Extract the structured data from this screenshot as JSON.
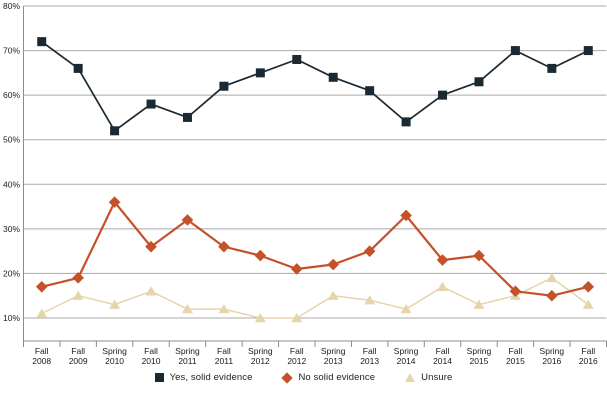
{
  "chart_data": {
    "type": "line",
    "title": "",
    "xlabel": "",
    "ylabel": "",
    "categories": [
      "Fall 2008",
      "Fall 2009",
      "Spring 2010",
      "Fall 2010",
      "Spring 2011",
      "Fall 2011",
      "Spring 2012",
      "Fall 2012",
      "Spring 2013",
      "Fall 2013",
      "Spring 2014",
      "Fall 2014",
      "Spring 2015",
      "Fall 2015",
      "Spring 2016",
      "Fall 2016"
    ],
    "series": [
      {
        "name": "Yes, solid evidence",
        "marker": "square",
        "color": "#1b2933",
        "line_width": 1.7,
        "values": [
          72,
          66,
          52,
          58,
          55,
          62,
          65,
          68,
          64,
          61,
          54,
          60,
          63,
          70,
          66,
          70
        ]
      },
      {
        "name": "No solid evidence",
        "marker": "diamond",
        "color": "#c5512b",
        "line_width": 2.2,
        "values": [
          17,
          19,
          36,
          26,
          32,
          26,
          24,
          21,
          22,
          25,
          33,
          23,
          24,
          16,
          15,
          17
        ]
      },
      {
        "name": "Unsure",
        "marker": "triangle",
        "color": "#e6d5aa",
        "line_width": 1.5,
        "values": [
          11,
          15,
          13,
          16,
          12,
          12,
          10,
          10,
          15,
          14,
          12,
          17,
          13,
          15,
          19,
          13
        ]
      }
    ],
    "yticks": [
      "80%",
      "70%",
      "60%",
      "50%",
      "40%",
      "30%",
      "20%",
      "10%"
    ],
    "ylim": [
      10,
      80
    ],
    "grid": true,
    "legend_position": "bottom",
    "colors": {
      "gridline": "#a9a9a9",
      "axis": "#8c8c8c",
      "tick_label": "#1a1a1a",
      "background": "#ffffff"
    }
  }
}
